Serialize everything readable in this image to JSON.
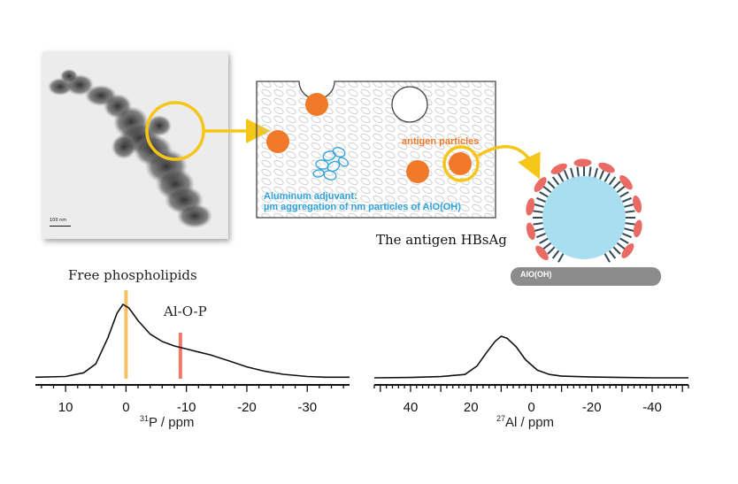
{
  "tem": {
    "scale_label": "100 nm"
  },
  "adjuvant_box": {
    "label_line1": "Aluminum adjuvant:",
    "label_line2": "µm aggregation of nm particles of AlO(OH)",
    "antigen_label": "antigen particles",
    "colors": {
      "particle": "#f07a2a",
      "ring": "#f5c518",
      "text_blue": "#2ea3dd"
    }
  },
  "hbsag": {
    "caption": "The antigen HBsAg",
    "surface_label": "AlO(OH)",
    "colors": {
      "core": "#a9def0",
      "lipid": "#e96b63",
      "surface": "#8c8c8c"
    }
  },
  "labels": {
    "free_phospholipids": "Free phospholipids",
    "al_o_p": "Al-O-P"
  },
  "chart_data": [
    {
      "type": "line",
      "xlabel_sup": "31",
      "xlabel": "P / ppm",
      "xlim": [
        15,
        -37
      ],
      "xticks": [
        10,
        0,
        -10,
        -20,
        -30
      ],
      "tick_labels": [
        "10",
        "0",
        "-10",
        "-20",
        "-30"
      ],
      "markers": [
        {
          "name": "Free phospholipids",
          "x": 0,
          "color": "#f5c065"
        },
        {
          "name": "Al-O-P",
          "x": -9,
          "color": "#ef7a6a"
        }
      ],
      "series": [
        {
          "x": [
            15,
            10,
            7,
            5,
            3,
            1.5,
            0.5,
            -0.5,
            -2,
            -4,
            -6,
            -8,
            -10,
            -12,
            -14,
            -17,
            -20,
            -23,
            -26,
            -30,
            -33,
            -37
          ],
          "y": [
            0.02,
            0.03,
            0.08,
            0.2,
            0.55,
            0.88,
            1.0,
            0.95,
            0.78,
            0.6,
            0.5,
            0.44,
            0.4,
            0.36,
            0.32,
            0.24,
            0.16,
            0.1,
            0.06,
            0.03,
            0.02,
            0.02
          ]
        }
      ]
    },
    {
      "type": "line",
      "xlabel_sup": "27",
      "xlabel": "Al / ppm",
      "xlim": [
        52,
        -52
      ],
      "xticks": [
        40,
        20,
        0,
        -20,
        -40
      ],
      "tick_labels": [
        "40",
        "20",
        "0",
        "-20",
        "-40"
      ],
      "series": [
        {
          "x": [
            52,
            40,
            30,
            22,
            18,
            15,
            12,
            10,
            8,
            5,
            2,
            -2,
            -6,
            -10,
            -20,
            -30,
            -40,
            -52
          ],
          "y": [
            0.02,
            0.03,
            0.05,
            0.1,
            0.3,
            0.6,
            0.88,
            1.0,
            0.95,
            0.75,
            0.45,
            0.2,
            0.1,
            0.06,
            0.04,
            0.03,
            0.02,
            0.02
          ]
        }
      ]
    }
  ]
}
